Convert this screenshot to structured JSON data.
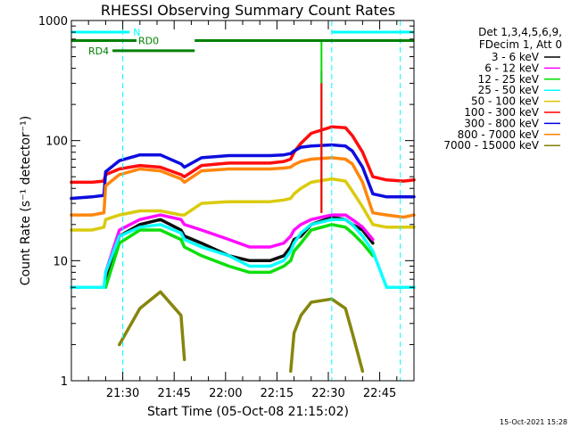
{
  "chart_data": {
    "type": "line",
    "title": "RHESSI Observing Summary Count Rates",
    "xlabel": "Start Time (05-Oct-08 21:15:02)",
    "ylabel": "Count Rate (s⁻¹ detector⁻¹)",
    "y_scale": "log",
    "ylim": [
      1,
      1000
    ],
    "xlim_minutes": [
      0,
      100
    ],
    "x_tick_labels": [
      "21:30",
      "21:45",
      "22:00",
      "22:15",
      "22:30",
      "22:45"
    ],
    "x_tick_minutes": [
      15,
      30,
      45,
      60,
      75,
      90
    ],
    "y_tick_labels": [
      "1",
      "10",
      "100",
      "1000"
    ],
    "y_ticks": [
      1,
      10,
      100,
      1000
    ],
    "grid": false,
    "legend_header": [
      "Det 1,3,4,5,6,9,",
      "FDecim 1, Att 0"
    ],
    "legend_placement": "right",
    "footer": "15-Oct-2021 15:28",
    "x_minutes": [
      0,
      6,
      9.5,
      10,
      14,
      20,
      26,
      32,
      33,
      38,
      46,
      52,
      58,
      62,
      64,
      65,
      67,
      70,
      76,
      80,
      82,
      85,
      88,
      92,
      97,
      100
    ],
    "series": [
      {
        "name": "3 - 6 keV",
        "color": "#000000",
        "values": [
          null,
          null,
          null,
          7,
          16,
          20,
          22,
          18,
          16,
          14,
          11,
          10,
          10,
          11,
          13,
          15,
          16,
          20,
          23,
          22,
          20,
          18,
          14,
          null,
          null,
          null
        ]
      },
      {
        "name": "6 - 12 keV",
        "color": "#ff00ff",
        "values": [
          null,
          null,
          null,
          8,
          18,
          22,
          24,
          22,
          20,
          18,
          15,
          13,
          13,
          14,
          16,
          18,
          20,
          22,
          24,
          24,
          22,
          19,
          15,
          null,
          null,
          null
        ]
      },
      {
        "name": "12 - 25 keV",
        "color": "#00dd00",
        "values": [
          null,
          null,
          null,
          6,
          14,
          18,
          18,
          15,
          13,
          11,
          9,
          8,
          8,
          9,
          10,
          12,
          14,
          18,
          20,
          19,
          17,
          14,
          11,
          null,
          null,
          null
        ]
      },
      {
        "name": "25 - 50 keV",
        "color": "#00ffff",
        "values": [
          6,
          6,
          6,
          8,
          16,
          19,
          20,
          17,
          15,
          13,
          11,
          9,
          9,
          10,
          12,
          14,
          17,
          20,
          22,
          22,
          20,
          16,
          12,
          6,
          6,
          6
        ]
      },
      {
        "name": "50 - 100 keV",
        "color": "#d8c800",
        "values": [
          18,
          18,
          19,
          22,
          24,
          26,
          26,
          24,
          24,
          30,
          31,
          31,
          31,
          32,
          33,
          36,
          40,
          45,
          48,
          46,
          38,
          28,
          20,
          19,
          19,
          19
        ]
      },
      {
        "name": "100 - 300 keV",
        "color": "#ff0000",
        "values": [
          45,
          45,
          46,
          52,
          58,
          62,
          60,
          52,
          50,
          62,
          65,
          65,
          65,
          67,
          70,
          80,
          95,
          115,
          130,
          128,
          110,
          80,
          50,
          47,
          46,
          47
        ]
      },
      {
        "name": "300 - 800 keV",
        "color": "#0000dd",
        "values": [
          33,
          34,
          35,
          55,
          68,
          76,
          76,
          64,
          60,
          72,
          75,
          75,
          75,
          76,
          78,
          82,
          88,
          90,
          92,
          90,
          82,
          60,
          36,
          34,
          34,
          34
        ]
      },
      {
        "name": "800 - 7000 keV",
        "color": "#ff8000",
        "values": [
          24,
          24,
          25,
          42,
          52,
          58,
          56,
          48,
          45,
          56,
          58,
          58,
          58,
          59,
          60,
          63,
          67,
          70,
          72,
          70,
          64,
          45,
          25,
          24,
          23,
          24
        ]
      },
      {
        "name": "7000 - 15000 keV",
        "color": "#808000",
        "values": [
          null,
          null,
          null,
          null,
          2,
          4,
          5.5,
          3.5,
          1.5,
          null,
          null,
          null,
          null,
          null,
          1.2,
          2.5,
          3.5,
          4.5,
          4.8,
          4,
          2.5,
          1.2,
          null,
          null,
          null,
          null
        ]
      }
    ],
    "flare_spike": {
      "minute": 73,
      "peak_values": {
        "12 - 25 keV": 700,
        "6 - 12 keV": 380,
        "100 - 300 keV": 300
      }
    },
    "night_markers_minutes": [
      15,
      76
    ],
    "day_markers_minutes": [
      0,
      96
    ],
    "flag_bars": [
      {
        "label": "N",
        "color": "#00ffff",
        "y": 800,
        "segments": [
          [
            0,
            17
          ],
          [
            76,
            100
          ]
        ]
      },
      {
        "label": "RD0",
        "color": "#008000",
        "y": 680,
        "segments": [
          [
            0,
            19
          ],
          [
            36,
            100
          ]
        ]
      },
      {
        "label": "RD4",
        "color": "#008000",
        "y": 560,
        "segments": [
          [
            12,
            36
          ]
        ]
      }
    ]
  }
}
